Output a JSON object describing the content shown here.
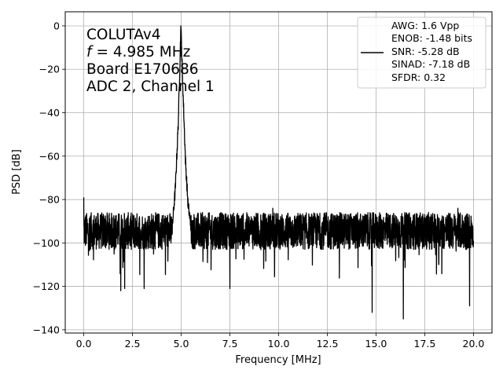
{
  "chart_data": {
    "type": "line",
    "xlabel": "Frequency [MHz]",
    "ylabel": "PSD [dB]",
    "xlim": [
      -0.95,
      20.95
    ],
    "ylim": [
      -141.5,
      6.5
    ],
    "xticks": [
      0.0,
      2.5,
      5.0,
      7.5,
      10.0,
      12.5,
      15.0,
      17.5,
      20.0
    ],
    "xtick_labels": [
      "0.0",
      "2.5",
      "5.0",
      "7.5",
      "10.0",
      "12.5",
      "15.0",
      "17.5",
      "20.0"
    ],
    "yticks": [
      0,
      -20,
      -40,
      -60,
      -80,
      -100,
      -120,
      -140
    ],
    "ytick_labels": [
      "0",
      "−20",
      "−40",
      "−60",
      "−80",
      "−100",
      "−120",
      "−140"
    ],
    "grid": true,
    "annotation_lines": [
      "COLUTAv4",
      "= 4.985 MHz",
      "Board E170686",
      "ADC 2, Channel 1"
    ],
    "annotation_freq_symbol": "f",
    "legend": {
      "placement": "top-right",
      "lines": [
        "AWG: 1.6 Vpp",
        "ENOB: -1.48 bits",
        "SNR: -5.28 dB",
        "SINAD: -7.18 dB",
        "SFDR: 0.32"
      ]
    },
    "series": [
      {
        "color": "#000000",
        "noise_floor_db": -94,
        "noise_band_db": [
          -103,
          -86
        ],
        "peak": {
          "x": 4.985,
          "y": 0
        },
        "peak_skirt": [
          {
            "x": 4.55,
            "y": -92
          },
          {
            "x": 4.7,
            "y": -75
          },
          {
            "x": 4.85,
            "y": -45
          },
          {
            "x": 4.985,
            "y": 0
          },
          {
            "x": 5.1,
            "y": -32
          },
          {
            "x": 5.22,
            "y": -62
          },
          {
            "x": 5.35,
            "y": -82
          },
          {
            "x": 5.5,
            "y": -92
          }
        ],
        "spikes": [
          {
            "x": 0.0,
            "y": -79
          },
          {
            "x": 1.9,
            "y": -122
          },
          {
            "x": 2.1,
            "y": -121
          },
          {
            "x": 3.1,
            "y": -121
          },
          {
            "x": 7.5,
            "y": -121
          },
          {
            "x": 9.7,
            "y": -84
          },
          {
            "x": 14.8,
            "y": -132
          },
          {
            "x": 16.4,
            "y": -135
          },
          {
            "x": 19.8,
            "y": -129
          },
          {
            "x": 19.2,
            "y": -84
          }
        ]
      }
    ]
  }
}
